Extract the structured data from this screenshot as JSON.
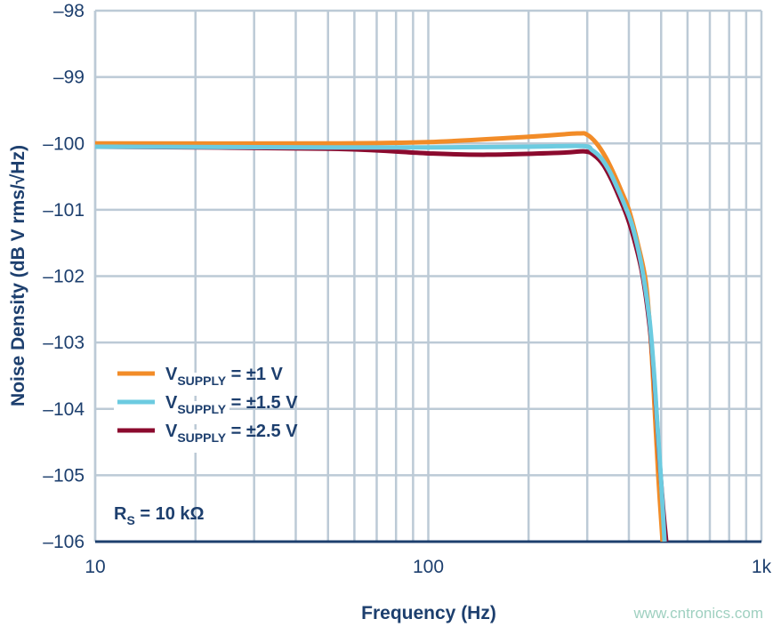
{
  "chart_data": {
    "type": "line",
    "xlabel": "Frequency (Hz)",
    "ylabel": "Noise Density (dB V rms/√Hz)",
    "x_scale": "log",
    "xlim": [
      10,
      1000
    ],
    "ylim": [
      -106,
      -98
    ],
    "x_ticks": [
      {
        "v": 10,
        "label": "10"
      },
      {
        "v": 100,
        "label": "100"
      },
      {
        "v": 1000,
        "label": "1k"
      }
    ],
    "y_ticks": [
      {
        "v": -98,
        "label": "–98"
      },
      {
        "v": -99,
        "label": "–99"
      },
      {
        "v": -100,
        "label": "–100"
      },
      {
        "v": -101,
        "label": "–101"
      },
      {
        "v": -102,
        "label": "–102"
      },
      {
        "v": -103,
        "label": "–103"
      },
      {
        "v": -104,
        "label": "–104"
      },
      {
        "v": -105,
        "label": "–105"
      },
      {
        "v": -106,
        "label": "–106"
      }
    ],
    "grid": true,
    "legend_position": "bottom-left",
    "annotation": {
      "main": "R",
      "sub": "S",
      "rest": " = 10 kΩ"
    },
    "series": [
      {
        "name": "VSUPPLY = ±1 V",
        "label_main": "V",
        "label_sub": "SUPPLY",
        "label_rest": " = ±1 V",
        "color": "#f28c28",
        "x": [
          10,
          50,
          100,
          200,
          280,
          300,
          320,
          340,
          360,
          380,
          400,
          425,
          450,
          466,
          478,
          490,
          505
        ],
        "y": [
          -100.0,
          -100.0,
          -99.98,
          -99.9,
          -99.85,
          -99.87,
          -100.0,
          -100.2,
          -100.45,
          -100.72,
          -101.0,
          -101.5,
          -102.1,
          -103.0,
          -104.0,
          -105.0,
          -106.0
        ]
      },
      {
        "name": "VSUPPLY = ±1.5 V",
        "label_main": "V",
        "label_sub": "SUPPLY",
        "label_rest": " = ±1.5 V",
        "color": "#6ccbe0",
        "x": [
          10,
          50,
          100,
          200,
          290,
          310,
          330,
          350,
          370,
          390,
          410,
          435,
          460,
          475,
          488,
          500,
          512
        ],
        "y": [
          -100.05,
          -100.06,
          -100.06,
          -100.05,
          -100.04,
          -100.1,
          -100.22,
          -100.42,
          -100.68,
          -100.95,
          -101.25,
          -101.8,
          -102.6,
          -103.4,
          -104.3,
          -105.1,
          -106.0
        ]
      },
      {
        "name": "VSUPPLY = ±2.5 V",
        "label_main": "V",
        "label_sub": "SUPPLY",
        "label_rest": " = ±2.5 V",
        "color": "#8b0a2e",
        "x": [
          10,
          50,
          100,
          150,
          250,
          295,
          315,
          335,
          355,
          375,
          395,
          415,
          440,
          465,
          480,
          493,
          507,
          518
        ],
        "y": [
          -100.05,
          -100.08,
          -100.15,
          -100.17,
          -100.14,
          -100.12,
          -100.18,
          -100.32,
          -100.55,
          -100.82,
          -101.1,
          -101.45,
          -102.0,
          -102.9,
          -103.8,
          -104.7,
          -105.5,
          -106.0
        ]
      }
    ]
  },
  "watermark": "www.cntronics.com"
}
